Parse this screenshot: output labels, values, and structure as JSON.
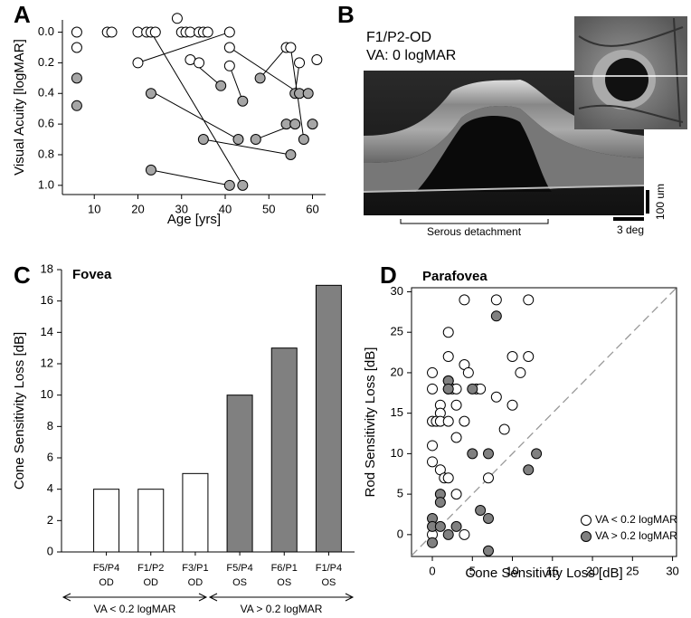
{
  "chart_data": [
    {
      "type": "scatter",
      "panel_label": "A",
      "xlabel": "Age [yrs]",
      "ylabel": "Visual Acuity [logMAR]",
      "xlim": [
        2.7,
        63
      ],
      "ylim": [
        -0.08,
        1.06
      ],
      "y_inverted": true,
      "xticks": [
        10,
        20,
        30,
        40,
        50,
        60
      ],
      "yticks": [
        {
          "value": 0,
          "label": "0.0"
        },
        {
          "value": 0.2,
          "label": "0.2"
        },
        {
          "value": 0.4,
          "label": "0.4"
        },
        {
          "value": 0.6,
          "label": "0.6"
        },
        {
          "value": 0.8,
          "label": "0.8"
        },
        {
          "value": 1,
          "label": "1.0"
        }
      ],
      "connections": {
        "color": "#000000",
        "x": [
          20,
          41,
          null,
          23,
          44,
          null,
          24,
          43,
          null,
          32,
          39,
          null,
          41,
          57,
          null,
          41,
          44,
          null,
          48,
          54,
          null,
          55,
          58,
          null,
          57,
          56,
          null,
          23,
          41,
          null,
          35,
          55,
          null,
          47,
          56
        ],
        "values": [
          0.2,
          0,
          null,
          0,
          1,
          null,
          0.4,
          0.7,
          null,
          0.18,
          0.35,
          null,
          0.1,
          0.4,
          null,
          0.22,
          0.45,
          null,
          0.3,
          0.1,
          null,
          0.1,
          0.7,
          null,
          0.2,
          0.4,
          null,
          0.9,
          1,
          null,
          0.7,
          0.8,
          null,
          0.7,
          0.6
        ]
      },
      "series": [
        {
          "color": "#ffffff",
          "x": [
            6,
            6,
            13,
            14,
            20,
            22,
            23,
            24,
            29,
            30,
            31,
            32,
            34,
            35,
            36,
            41,
            20,
            32,
            34,
            41,
            41,
            54,
            55,
            57,
            61
          ],
          "values": [
            0,
            0.1,
            0,
            0,
            0,
            0,
            0,
            0,
            -0.09,
            0,
            0,
            0,
            0,
            0,
            0,
            0,
            0.2,
            0.18,
            0.2,
            0.1,
            0.22,
            0.1,
            0.1,
            0.2,
            0.18
          ]
        },
        {
          "color": "#a6a6a6",
          "x": [
            6,
            6,
            23,
            39,
            43,
            35,
            48,
            47,
            54,
            55,
            56,
            56,
            57,
            58,
            59,
            60,
            23,
            41,
            44,
            44
          ],
          "values": [
            0.3,
            0.48,
            0.4,
            0.35,
            0.7,
            0.7,
            0.3,
            0.7,
            0.6,
            0.8,
            0.6,
            0.4,
            0.4,
            0.7,
            0.4,
            0.6,
            0.9,
            1,
            1,
            0.45
          ]
        }
      ]
    },
    {
      "type": "bar",
      "panel_label": "C",
      "title": "Fovea",
      "ylabel": "Cone Sensitivity Loss [dB]",
      "categories": [
        "F5/P4 OD",
        "F1/P2 OD",
        "F3/P1 OD",
        "F5/P4 OS",
        "F6/P1 OS",
        "F1/P4 OS"
      ],
      "values": [
        4,
        4,
        5,
        10,
        13,
        17
      ],
      "colors": [
        "#ffffff",
        "#ffffff",
        "#ffffff",
        "#808080",
        "#808080",
        "#808080"
      ],
      "ylim": [
        0,
        18
      ],
      "yticks": [
        0,
        2,
        4,
        6,
        8,
        10,
        12,
        14,
        16,
        18
      ],
      "group_labels": [
        "VA < 0.2 logMAR",
        "VA > 0.2 logMAR"
      ]
    },
    {
      "type": "scatter",
      "panel_label": "D",
      "title": "Parafovea",
      "xlabel": "Cone Sensitivity Loss [dB]",
      "ylabel": "Rod Sensitivity Loss [dB]",
      "xlim": [
        -2.6,
        30.5
      ],
      "ylim": [
        -2.7,
        30.5
      ],
      "xticks": [
        0,
        5,
        10,
        15,
        20,
        25,
        30
      ],
      "yticks": [
        0,
        5,
        10,
        15,
        20,
        25,
        30
      ],
      "identity_line": true,
      "legend": "lower right",
      "series": [
        {
          "name": "VA < 0.2 logMAR",
          "color": "#ffffff",
          "x": [
            4,
            8,
            12,
            2,
            2,
            10,
            12,
            4,
            0,
            4.5,
            11,
            2,
            0,
            2,
            2.5,
            3,
            5.5,
            6,
            8,
            1,
            3,
            10,
            1,
            0,
            0.5,
            1,
            2,
            4,
            9,
            3,
            0,
            0,
            1,
            1.5,
            2,
            7,
            3,
            4,
            0
          ],
          "values": [
            29,
            29,
            29,
            25,
            22,
            22,
            22,
            21,
            20,
            20,
            20,
            19,
            18,
            18,
            18,
            18,
            18,
            18,
            17,
            16,
            16,
            16,
            15,
            14,
            14,
            14,
            14,
            14,
            13,
            12,
            11,
            9,
            8,
            7,
            7,
            7,
            5,
            0,
            0
          ]
        },
        {
          "name": "VA > 0.2 logMAR",
          "color": "#808080",
          "x": [
            8,
            2,
            5,
            2,
            5,
            7,
            13,
            12,
            1,
            1,
            6,
            7,
            0,
            3,
            0,
            1,
            0,
            2,
            7
          ],
          "values": [
            27,
            19,
            18,
            18,
            10,
            10,
            10,
            8,
            5,
            4,
            3,
            2,
            2,
            1,
            1,
            1,
            -1,
            0,
            -2
          ]
        }
      ]
    }
  ],
  "image_panel": {
    "panel_label": "B",
    "eye": "F1/P2-OD",
    "va": "VA: 0 logMAR",
    "region_label": "Serous detachment",
    "scale_vertical": "100 um",
    "scale_horizontal": "3 deg"
  }
}
